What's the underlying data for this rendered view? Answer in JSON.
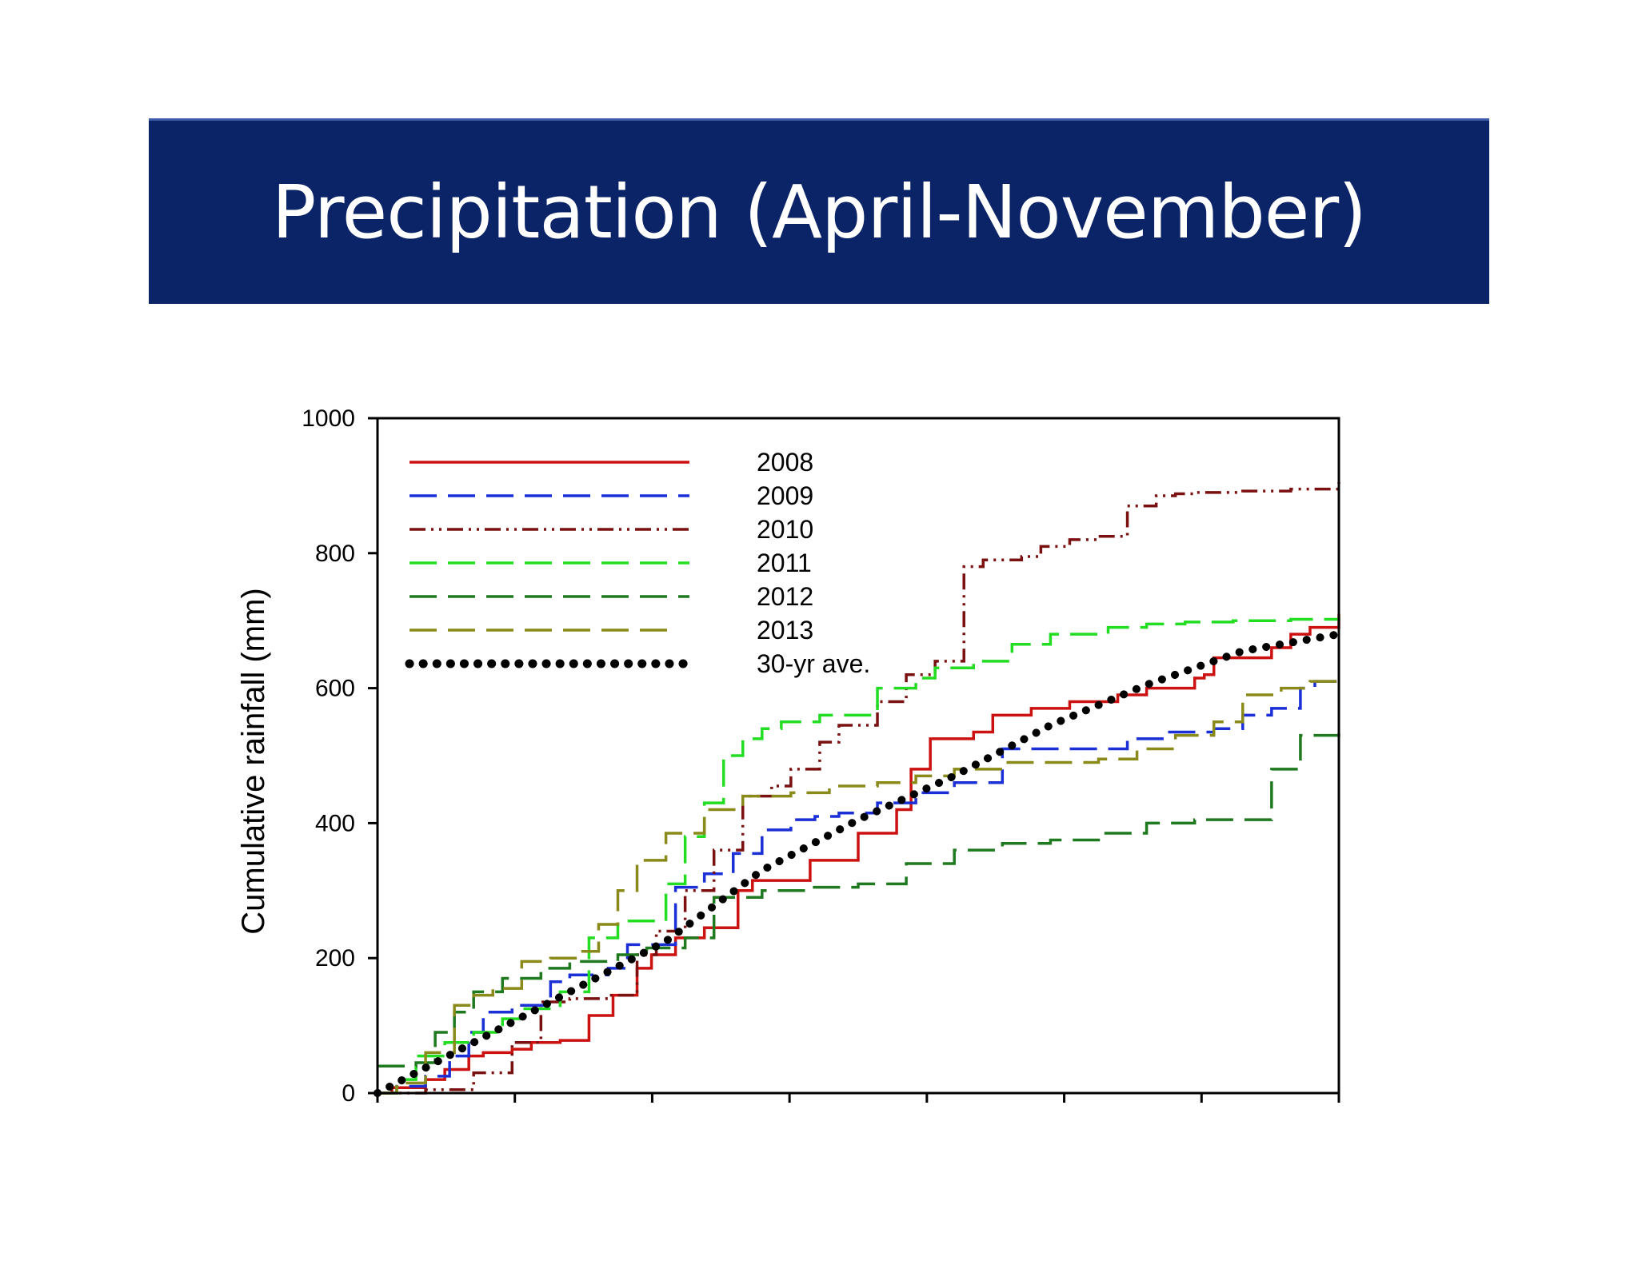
{
  "slide": {
    "title": "Precipitation (April-November)"
  },
  "chart_data": {
    "type": "line",
    "title": "",
    "xlabel": "",
    "ylabel": "Cumulative rainfall (mm)",
    "xlim": [
      0,
      1
    ],
    "ylim": [
      0,
      1000
    ],
    "yticks": [
      0,
      200,
      400,
      600,
      800,
      1000
    ],
    "x_minor_tick_count": 8,
    "legend_position": "top-left",
    "grid": false,
    "series": [
      {
        "name": "2008",
        "color": "#cc1111",
        "style": "solid",
        "x": [
          0.0,
          0.015,
          0.05,
          0.07,
          0.095,
          0.11,
          0.14,
          0.16,
          0.19,
          0.22,
          0.245,
          0.27,
          0.285,
          0.31,
          0.34,
          0.375,
          0.39,
          0.45,
          0.5,
          0.54,
          0.555,
          0.575,
          0.62,
          0.64,
          0.68,
          0.72,
          0.77,
          0.8,
          0.85,
          0.86,
          0.87,
          0.93,
          0.95,
          0.97,
          1.0
        ],
        "y": [
          0,
          8,
          20,
          35,
          55,
          60,
          65,
          75,
          78,
          115,
          145,
          185,
          205,
          230,
          245,
          300,
          315,
          345,
          385,
          420,
          480,
          525,
          535,
          560,
          570,
          580,
          590,
          600,
          615,
          620,
          645,
          660,
          680,
          690,
          710
        ]
      },
      {
        "name": "2009",
        "color": "#1a2fd6",
        "style": "dashed",
        "x": [
          0.0,
          0.02,
          0.05,
          0.075,
          0.095,
          0.11,
          0.14,
          0.18,
          0.2,
          0.24,
          0.26,
          0.31,
          0.34,
          0.37,
          0.4,
          0.43,
          0.455,
          0.48,
          0.52,
          0.56,
          0.6,
          0.65,
          0.69,
          0.74,
          0.78,
          0.82,
          0.87,
          0.9,
          0.93,
          0.96,
          0.975,
          1.0
        ],
        "y": [
          0,
          10,
          25,
          55,
          90,
          120,
          130,
          165,
          175,
          185,
          220,
          305,
          325,
          355,
          390,
          405,
          410,
          415,
          430,
          445,
          460,
          510,
          510,
          510,
          525,
          535,
          540,
          560,
          570,
          600,
          610,
          620
        ]
      },
      {
        "name": "2010",
        "color": "#7a1010",
        "style": "dash-dot-dot",
        "x": [
          0.0,
          0.05,
          0.1,
          0.14,
          0.17,
          0.2,
          0.24,
          0.27,
          0.29,
          0.32,
          0.35,
          0.38,
          0.41,
          0.43,
          0.46,
          0.48,
          0.52,
          0.55,
          0.58,
          0.61,
          0.63,
          0.65,
          0.67,
          0.69,
          0.72,
          0.75,
          0.78,
          0.81,
          0.83,
          0.85,
          0.9,
          0.95,
          1.0
        ],
        "y": [
          0,
          5,
          30,
          75,
          135,
          140,
          145,
          205,
          240,
          300,
          360,
          440,
          455,
          480,
          520,
          545,
          580,
          620,
          640,
          780,
          790,
          790,
          795,
          810,
          820,
          825,
          870,
          885,
          888,
          890,
          892,
          895,
          905
        ]
      },
      {
        "name": "2011",
        "color": "#22dd22",
        "style": "dashed",
        "x": [
          0.0,
          0.02,
          0.04,
          0.07,
          0.1,
          0.13,
          0.15,
          0.19,
          0.22,
          0.25,
          0.3,
          0.32,
          0.34,
          0.36,
          0.38,
          0.4,
          0.42,
          0.46,
          0.52,
          0.56,
          0.58,
          0.62,
          0.66,
          0.7,
          0.76,
          0.8,
          0.84,
          0.89,
          0.95,
          1.0
        ],
        "y": [
          0,
          20,
          55,
          75,
          90,
          110,
          125,
          150,
          230,
          255,
          310,
          380,
          430,
          500,
          525,
          540,
          550,
          560,
          600,
          615,
          630,
          640,
          665,
          680,
          690,
          695,
          698,
          700,
          702,
          700
        ]
      },
      {
        "name": "2012",
        "color": "#1f7a1f",
        "style": "dashed",
        "x": [
          0.0,
          0.04,
          0.06,
          0.08,
          0.1,
          0.13,
          0.17,
          0.2,
          0.25,
          0.28,
          0.32,
          0.35,
          0.4,
          0.45,
          0.5,
          0.55,
          0.6,
          0.65,
          0.7,
          0.75,
          0.8,
          0.85,
          0.88,
          0.91,
          0.93,
          0.96,
          1.0
        ],
        "y": [
          40,
          45,
          90,
          120,
          150,
          170,
          185,
          195,
          205,
          215,
          230,
          290,
          300,
          305,
          310,
          340,
          360,
          370,
          375,
          385,
          400,
          405,
          405,
          405,
          480,
          530,
          535
        ]
      },
      {
        "name": "2013",
        "color": "#8a8a1a",
        "style": "dashed",
        "x": [
          0.0,
          0.02,
          0.05,
          0.08,
          0.1,
          0.12,
          0.15,
          0.18,
          0.21,
          0.23,
          0.25,
          0.27,
          0.3,
          0.34,
          0.38,
          0.43,
          0.47,
          0.52,
          0.56,
          0.6,
          0.65,
          0.7,
          0.75,
          0.79,
          0.83,
          0.87,
          0.9,
          0.94,
          0.97,
          1.0
        ],
        "y": [
          0,
          15,
          60,
          130,
          145,
          155,
          195,
          200,
          210,
          250,
          300,
          345,
          385,
          420,
          440,
          445,
          455,
          460,
          470,
          480,
          490,
          490,
          495,
          510,
          530,
          550,
          590,
          600,
          610,
          620
        ]
      },
      {
        "name": "30-yr ave.",
        "color": "#000000",
        "style": "dotted",
        "x": [
          0.0,
          0.1,
          0.2,
          0.3,
          0.4,
          0.5,
          0.6,
          0.7,
          0.8,
          0.9,
          1.0
        ],
        "y": [
          0,
          75,
          150,
          225,
          330,
          405,
          470,
          545,
          605,
          655,
          680
        ]
      }
    ]
  }
}
